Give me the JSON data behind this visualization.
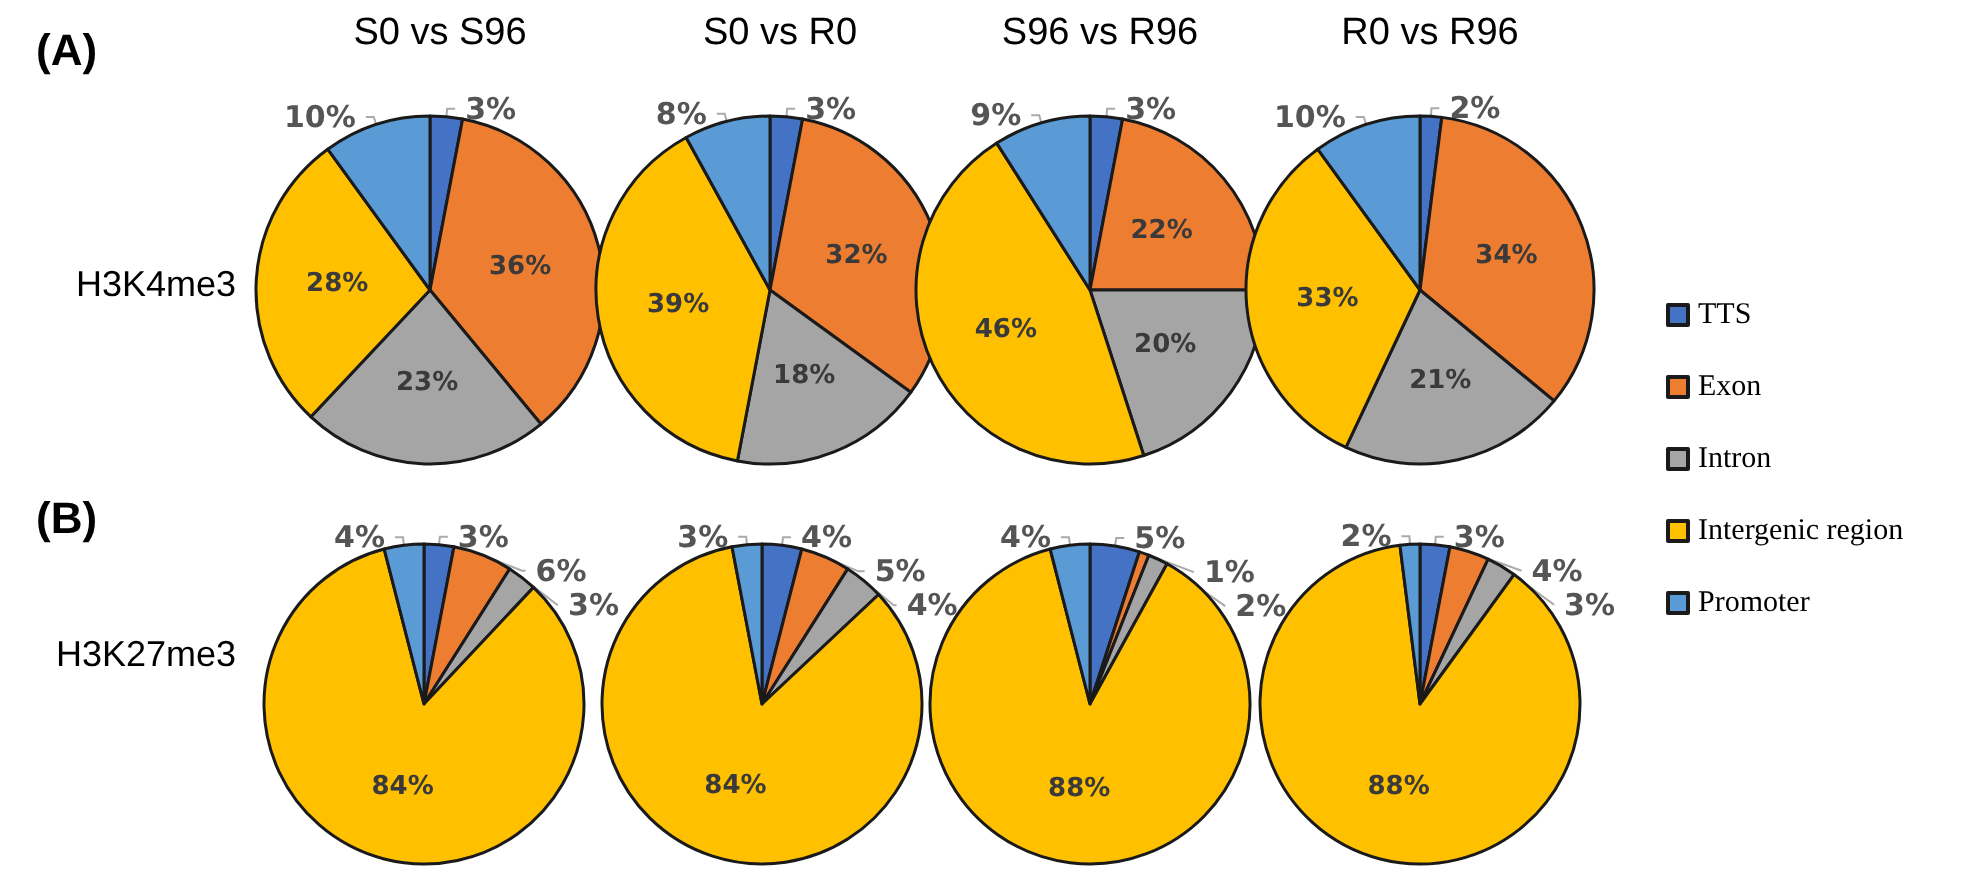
{
  "chart_data": [
    {
      "type": "pie",
      "title": "S0 vs S96",
      "annotations": [
        "(A)",
        "H3K4me3"
      ],
      "categories": [
        null,
        null,
        null,
        null,
        null
      ],
      "values": [
        3,
        36,
        23,
        28,
        10
      ],
      "value_labels": [
        "3%",
        "36%",
        "23%",
        "28%",
        "10%"
      ],
      "colors": [
        "#4472c4",
        "#ed7d31",
        "#a5a5a5",
        "#ffc000",
        "#5b9bd5"
      ],
      "legend": false
    },
    {
      "type": "pie",
      "title": "S0 vs R0",
      "categories": [
        null,
        null,
        null,
        null,
        null
      ],
      "values": [
        3,
        32,
        18,
        39,
        8
      ],
      "value_labels": [
        "3%",
        "32%",
        "18%",
        "39%",
        "8%"
      ],
      "colors": [
        "#4472c4",
        "#ed7d31",
        "#a5a5a5",
        "#ffc000",
        "#5b9bd5"
      ],
      "legend": false
    },
    {
      "type": "pie",
      "title": "S96 vs R96",
      "categories": [
        null,
        null,
        null,
        null,
        null
      ],
      "values": [
        3,
        22,
        20,
        46,
        9
      ],
      "value_labels": [
        "3%",
        "22%",
        "20%",
        "46%",
        "9%"
      ],
      "colors": [
        "#4472c4",
        "#ed7d31",
        "#a5a5a5",
        "#ffc000",
        "#5b9bd5"
      ],
      "legend": false
    },
    {
      "type": "pie",
      "title": "R0 vs R96",
      "categories": [
        "TTS",
        "Exon",
        "Intron",
        "Intergenic region",
        "Promoter"
      ],
      "values": [
        2,
        34,
        21,
        33,
        10
      ],
      "value_labels": [
        "2%",
        "34%",
        "21%",
        "33%",
        "10%"
      ],
      "colors": [
        "#4472c4",
        "#ed7d31",
        "#a5a5a5",
        "#ffc000",
        "#5b9bd5"
      ],
      "legend": "right"
    },
    {
      "type": "pie",
      "annotations": [
        "(B)",
        "H3K27me3"
      ],
      "categories": [
        null,
        null,
        null,
        null,
        null
      ],
      "values": [
        3,
        6,
        3,
        84,
        4
      ],
      "value_labels": [
        "3%",
        "6%",
        "3%",
        "84%",
        "4%"
      ],
      "colors": [
        "#4472c4",
        "#ed7d31",
        "#a5a5a5",
        "#ffc000",
        "#5b9bd5"
      ],
      "legend": false
    },
    {
      "type": "pie",
      "categories": [
        null,
        null,
        null,
        null,
        null
      ],
      "values": [
        4,
        5,
        4,
        84,
        3
      ],
      "value_labels": [
        "4%",
        "5%",
        "4%",
        "84%",
        "3%"
      ],
      "colors": [
        "#4472c4",
        "#ed7d31",
        "#a5a5a5",
        "#ffc000",
        "#5b9bd5"
      ],
      "legend": false
    },
    {
      "type": "pie",
      "categories": [
        null,
        null,
        null,
        null,
        null
      ],
      "values": [
        5,
        1,
        2,
        88,
        4
      ],
      "value_labels": [
        "5%",
        "1%",
        "2%",
        "88%",
        "4%"
      ],
      "colors": [
        "#4472c4",
        "#ed7d31",
        "#a5a5a5",
        "#ffc000",
        "#5b9bd5"
      ],
      "legend": false
    },
    {
      "type": "pie",
      "categories": [
        null,
        null,
        null,
        null,
        null
      ],
      "values": [
        3,
        4,
        3,
        88,
        2
      ],
      "value_labels": [
        "3%",
        "4%",
        "3%",
        "88%",
        "2%"
      ],
      "colors": [
        "#4472c4",
        "#ed7d31",
        "#a5a5a5",
        "#ffc000",
        "#5b9bd5"
      ],
      "legend": false
    }
  ]
}
